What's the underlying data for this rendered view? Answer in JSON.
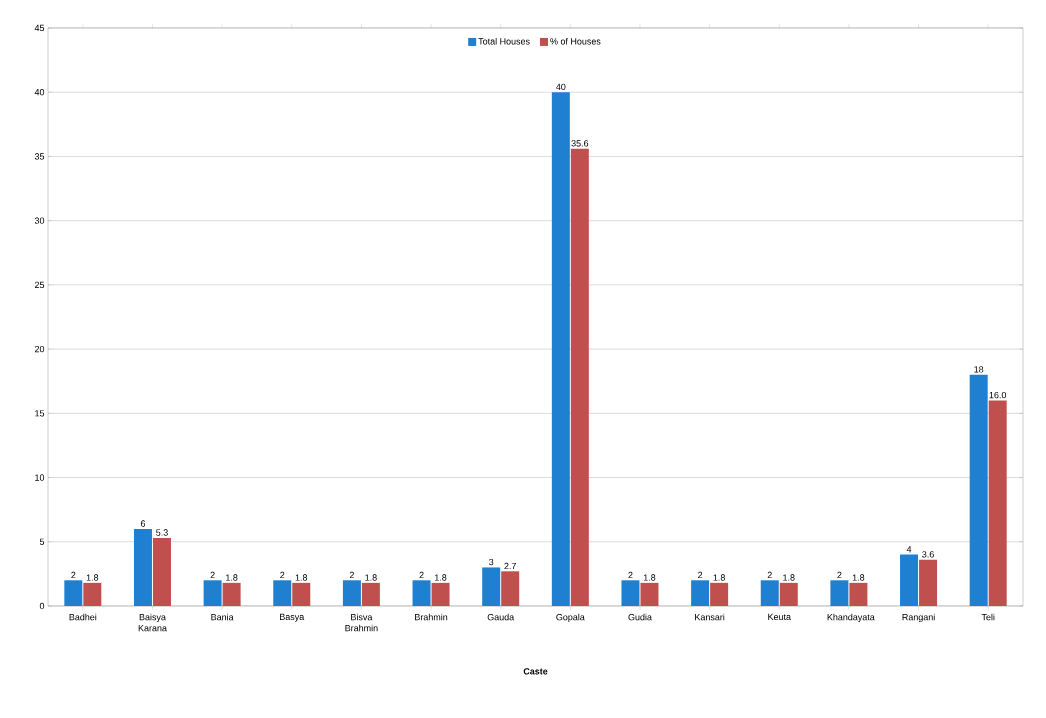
{
  "chart_data": {
    "type": "bar",
    "xlabel": "Caste",
    "categories": [
      "Badhei",
      "Baisya Karana",
      "Bania",
      "Basya",
      "Bisva Brahmin",
      "Brahmin",
      "Gauda",
      "Gopala",
      "Gudia",
      "Kansari",
      "Keuta",
      "Khandayata",
      "Rangani",
      "Teli"
    ],
    "series": [
      {
        "name": "Total Houses",
        "color": "#1f7fd0",
        "values": [
          2,
          6,
          2,
          2,
          2,
          2,
          3,
          40,
          2,
          2,
          2,
          2,
          4,
          18
        ],
        "value_labels": [
          "2",
          "6",
          "2",
          "2",
          "2",
          "2",
          "3",
          "40",
          "2",
          "2",
          "2",
          "2",
          "4",
          "18"
        ]
      },
      {
        "name": "% of Houses",
        "color": "#c0504d",
        "values": [
          1.8,
          5.3,
          1.8,
          1.8,
          1.8,
          1.8,
          2.7,
          35.6,
          1.8,
          1.8,
          1.8,
          1.8,
          3.6,
          16
        ],
        "value_labels": [
          "1.8",
          "5.3",
          "1.8",
          "1.8",
          "1.8",
          "1.8",
          "2.7",
          "35.6",
          "1.8",
          "1.8",
          "1.8",
          "1.8",
          "3.6",
          "16.0"
        ]
      }
    ],
    "ylim": [
      0,
      45
    ],
    "yticks": [
      0,
      5,
      10,
      15,
      20,
      25,
      30,
      35,
      40,
      45
    ],
    "grid": "y",
    "legend": "top"
  }
}
